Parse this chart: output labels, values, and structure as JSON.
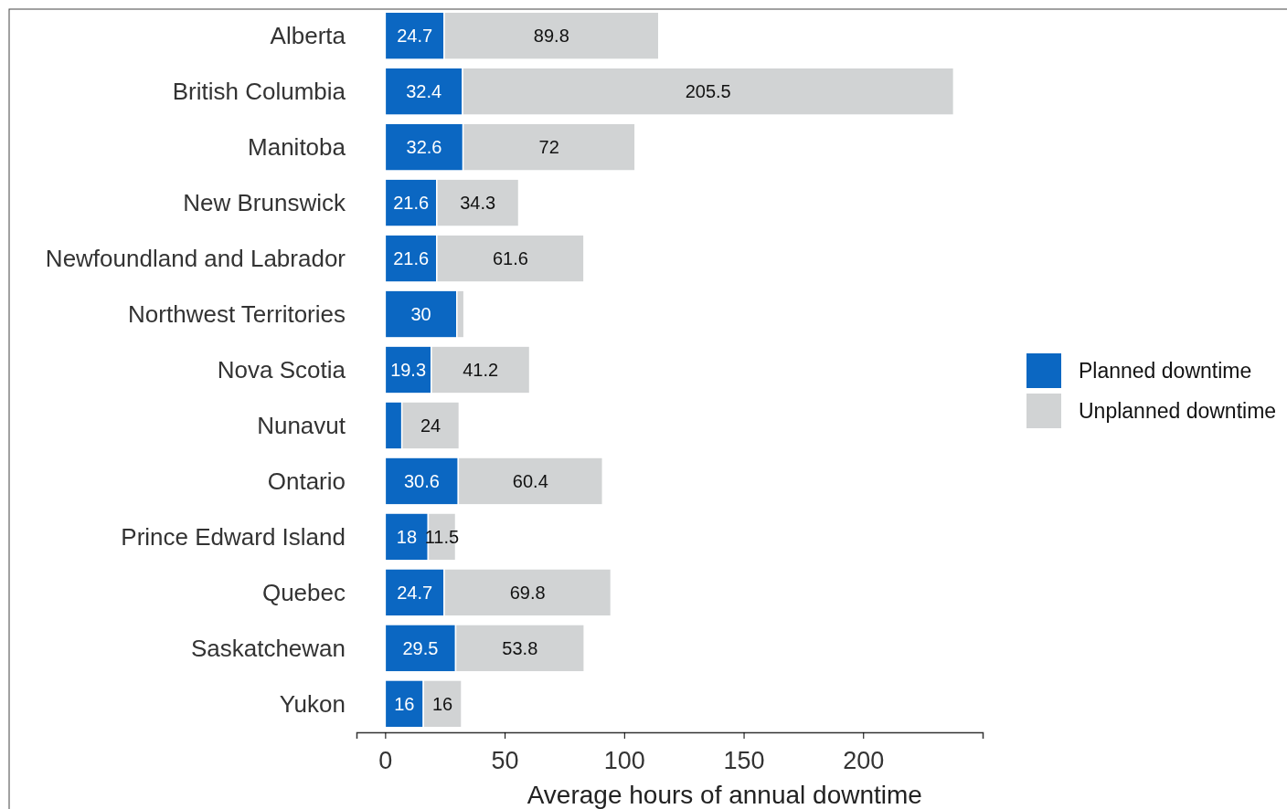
{
  "chart_data": {
    "type": "bar",
    "orientation": "horizontal",
    "stacked": true,
    "categories": [
      "Alberta",
      "British Columbia",
      "Manitoba",
      "New Brunswick",
      "Newfoundland and Labrador",
      "Northwest Territories",
      "Nova Scotia",
      "Nunavut",
      "Ontario",
      "Prince Edward Island",
      "Quebec",
      "Saskatchewan",
      "Yukon"
    ],
    "series": [
      {
        "name": "Planned downtime",
        "color": "#0b67c2",
        "values": [
          24.7,
          32.4,
          32.6,
          21.6,
          21.6,
          30,
          19.3,
          7,
          30.6,
          18,
          24.7,
          29.5,
          16
        ],
        "value_labels": [
          "24.7",
          "32.4",
          "32.6",
          "21.6",
          "21.6",
          "30",
          "19.3",
          null,
          "30.6",
          "18",
          "24.7",
          "29.5",
          "16"
        ]
      },
      {
        "name": "Unplanned downtime",
        "color": "#d1d3d4",
        "values": [
          89.8,
          205.5,
          72,
          34.3,
          61.6,
          3,
          41.2,
          24,
          60.4,
          11.5,
          69.8,
          53.8,
          16
        ],
        "value_labels": [
          "89.8",
          "205.5",
          "72",
          "34.3",
          "61.6",
          null,
          "41.2",
          "24",
          "60.4",
          "11.5",
          "69.8",
          "53.8",
          "16"
        ]
      }
    ],
    "xlim": [
      -12,
      250
    ],
    "xticks": [
      0,
      50,
      100,
      150,
      200
    ],
    "xlabel": "Average hours of annual downtime",
    "legend": "right",
    "grid": false
  }
}
